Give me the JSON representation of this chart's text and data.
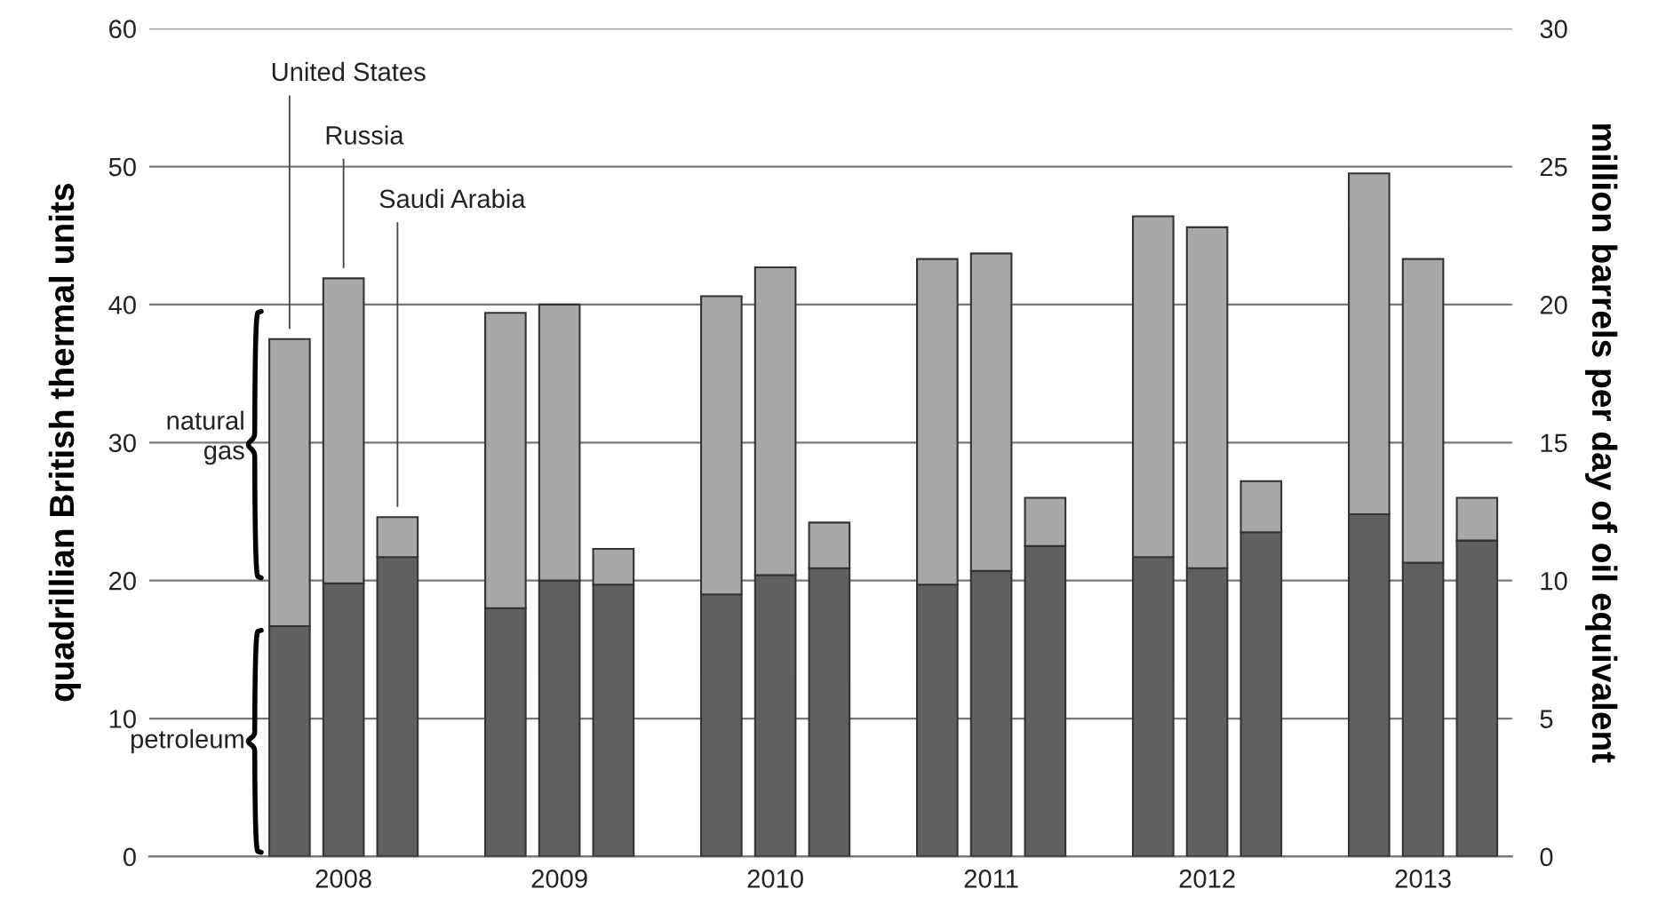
{
  "chart_data": {
    "type": "bar",
    "stacked": true,
    "categories": [
      null,
      "2008",
      null,
      null,
      null,
      "2009",
      null,
      null,
      null,
      "2010",
      null,
      null,
      null,
      "2011",
      null,
      null,
      null,
      "2012",
      null,
      null,
      null,
      "2013",
      null
    ],
    "series": [
      {
        "name": "petroleum",
        "color": "#606060",
        "values": [
          16.7,
          19.8,
          21.7,
          null,
          18.0,
          20.0,
          19.7,
          null,
          19.0,
          20.4,
          20.9,
          null,
          19.7,
          20.7,
          22.5,
          null,
          21.7,
          20.9,
          23.5,
          null,
          24.8,
          21.3,
          22.9
        ]
      },
      {
        "name": "natural gas",
        "color": "#a8a8a8",
        "values": [
          20.8,
          22.1,
          2.9,
          null,
          21.4,
          20.0,
          2.6,
          null,
          21.6,
          22.3,
          3.3,
          null,
          23.6,
          23.0,
          3.5,
          null,
          24.7,
          24.7,
          3.7,
          null,
          24.7,
          22.0,
          3.1
        ]
      }
    ],
    "ylabel": "quadrillian British thermal units",
    "y2label": "million barrels per day of oil equivalent",
    "ylim": [
      0,
      60
    ],
    "yticks": [
      0,
      10,
      20,
      30,
      40,
      50,
      60
    ],
    "y2lim": [
      0,
      30
    ],
    "y2ticks": [
      0,
      5,
      10,
      15,
      20,
      25,
      30
    ],
    "grid": "y",
    "legend": false,
    "annotations": [
      "United States",
      "Russia",
      "Saudi Arabia"
    ]
  }
}
